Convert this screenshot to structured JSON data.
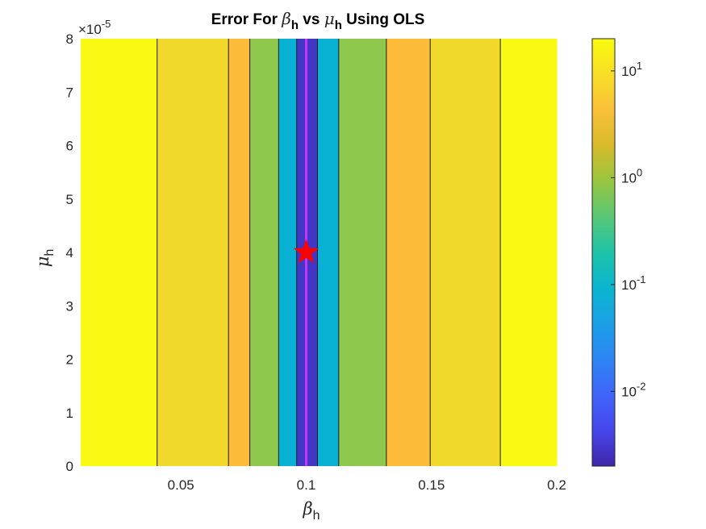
{
  "chart_data": {
    "type": "heatmap",
    "title": {
      "prefix": "Error For ",
      "sym1": "β",
      "sub1": "h",
      "middle": " vs ",
      "sym2": "μ",
      "sub2": "h",
      "suffix": " Using OLS"
    },
    "xlabel": {
      "sym": "β",
      "sub": "h"
    },
    "ylabel": {
      "sym": "μ",
      "sub": "h"
    },
    "xlim": [
      0.01,
      0.2
    ],
    "ylim": [
      0,
      8
    ],
    "x_ticks": [
      {
        "value": 0.05,
        "label": "0.05"
      },
      {
        "value": 0.1,
        "label": "0.1"
      },
      {
        "value": 0.15,
        "label": "0.15"
      },
      {
        "value": 0.2,
        "label": "0.2"
      }
    ],
    "y_ticks": [
      {
        "value": 0,
        "label": "0"
      },
      {
        "value": 1,
        "label": "1"
      },
      {
        "value": 2,
        "label": "2"
      },
      {
        "value": 3,
        "label": "3"
      },
      {
        "value": 4,
        "label": "4"
      },
      {
        "value": 5,
        "label": "5"
      },
      {
        "value": 6,
        "label": "6"
      },
      {
        "value": 7,
        "label": "7"
      },
      {
        "value": 8,
        "label": "8"
      }
    ],
    "y_exponent": {
      "base": "×10",
      "power": "-5"
    },
    "bands": [
      {
        "x0": 0.01,
        "x1": 0.0405,
        "color": "#f9f913"
      },
      {
        "x0": 0.0405,
        "x1": 0.069,
        "color": "#f1d92b"
      },
      {
        "x0": 0.069,
        "x1": 0.0775,
        "color": "#fdbb3a"
      },
      {
        "x0": 0.0775,
        "x1": 0.089,
        "color": "#8ec94e"
      },
      {
        "x0": 0.089,
        "x1": 0.0962,
        "color": "#08b1d3"
      },
      {
        "x0": 0.0962,
        "x1": 0.1045,
        "color": "#4236c6"
      },
      {
        "x0": 0.1045,
        "x1": 0.113,
        "color": "#08b1d3"
      },
      {
        "x0": 0.113,
        "x1": 0.132,
        "color": "#8ec94e"
      },
      {
        "x0": 0.132,
        "x1": 0.1495,
        "color": "#fdbb3a"
      },
      {
        "x0": 0.1495,
        "x1": 0.1775,
        "color": "#f1d92b"
      },
      {
        "x0": 0.1775,
        "x1": 0.2,
        "color": "#f9f913"
      }
    ],
    "contour_lines_x": [
      0.0405,
      0.069,
      0.0775,
      0.089,
      0.0962,
      0.1045,
      0.113,
      0.132,
      0.1495,
      0.1775
    ],
    "min_line": {
      "x": 0.1,
      "color": "#c933f5"
    },
    "marker": {
      "x": 0.1,
      "y": 4,
      "shape": "star",
      "color": "#ff0000"
    },
    "colorbar": {
      "scale": "log",
      "range": [
        0.002,
        20
      ],
      "ticks": [
        {
          "value": 10,
          "base": "10",
          "exp": "1"
        },
        {
          "value": 1,
          "base": "10",
          "exp": "0"
        },
        {
          "value": 0.1,
          "base": "10",
          "exp": "-1"
        },
        {
          "value": 0.01,
          "base": "10",
          "exp": "-2"
        }
      ],
      "colormap": [
        "#3e26a8",
        "#4746eb",
        "#3f65fa",
        "#2d85f4",
        "#1ba0e6",
        "#0ab5cf",
        "#1ec3a9",
        "#58c775",
        "#98c640",
        "#d7ba2a",
        "#fbc03a",
        "#f7de26",
        "#f9fb0e"
      ]
    }
  }
}
